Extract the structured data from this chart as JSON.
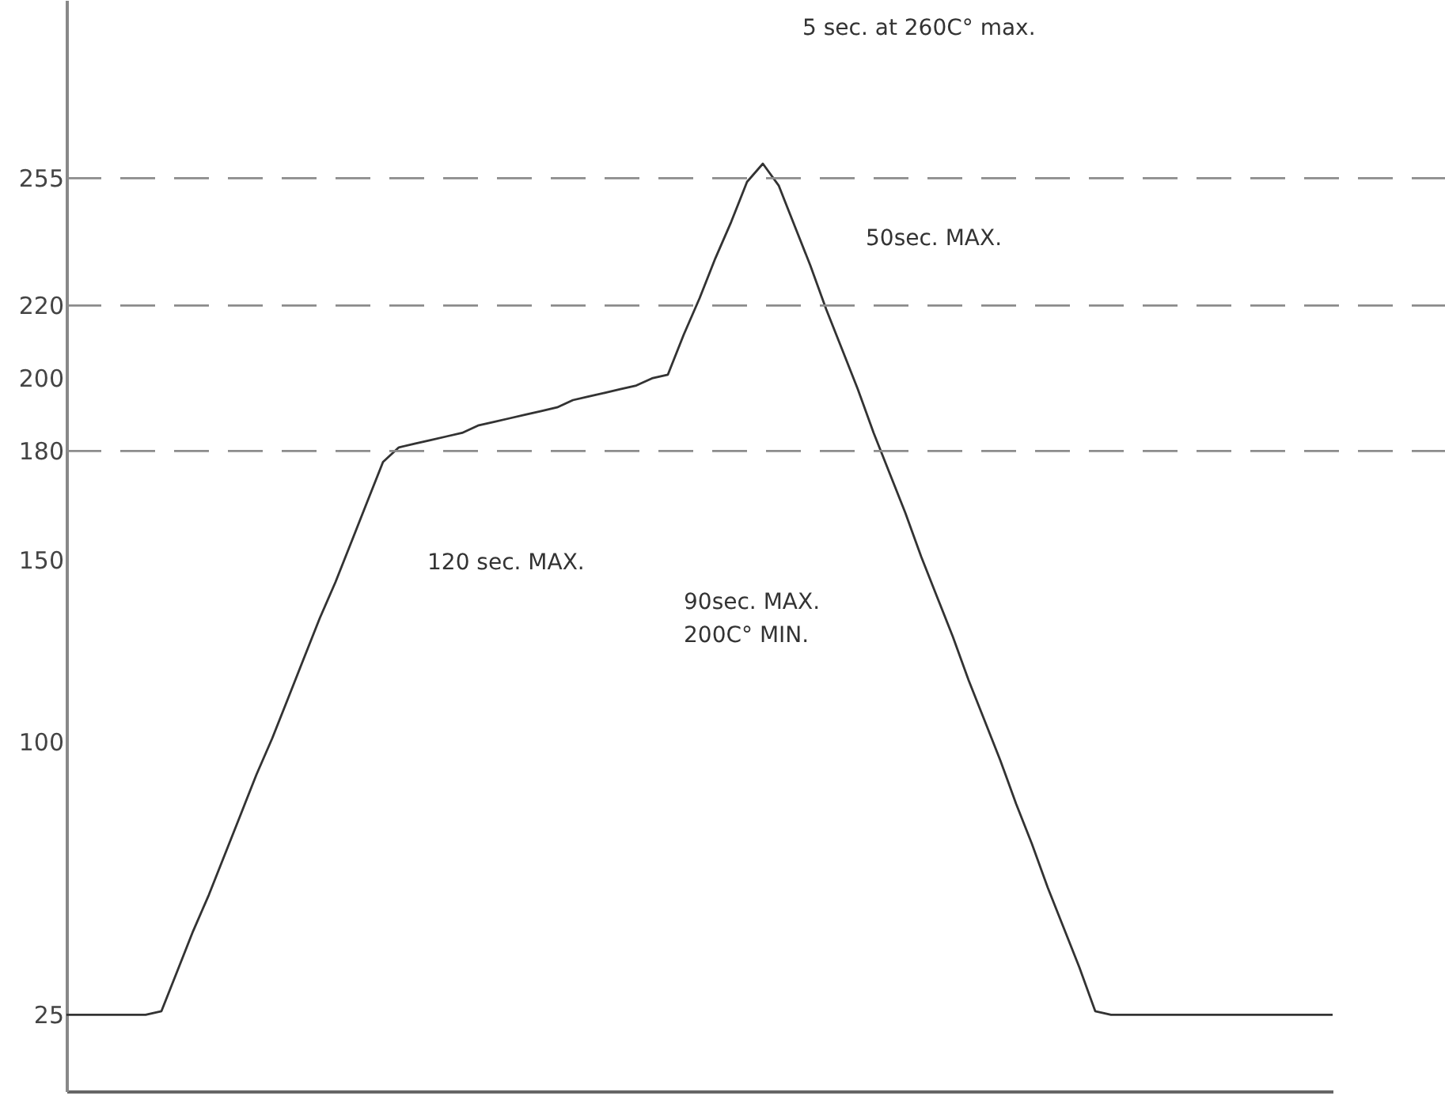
{
  "chart_data": {
    "type": "line",
    "categories": [
      null,
      null,
      null,
      null,
      null,
      null,
      null,
      null,
      null,
      null,
      null,
      null,
      null,
      null,
      null,
      null,
      null,
      null,
      null,
      null,
      null,
      null,
      null,
      null,
      null,
      null,
      null,
      null,
      null,
      null,
      null,
      null,
      null,
      null,
      null,
      null,
      null,
      null,
      null,
      null,
      null,
      null,
      null,
      null,
      null,
      null,
      null,
      null,
      null,
      null,
      null,
      null,
      null,
      null,
      null,
      null,
      null,
      null,
      null,
      null,
      null,
      null,
      null,
      null,
      null,
      null,
      null,
      null,
      null,
      null,
      null,
      null,
      null,
      null,
      null,
      null,
      null,
      null,
      null,
      null,
      null
    ],
    "series": [
      {
        "color": "#333333",
        "values": [
          25,
          25,
          25,
          25,
          25,
          25,
          26,
          37,
          48,
          58,
          69,
          80,
          91,
          101,
          112,
          123,
          134,
          144,
          155,
          166,
          177,
          181,
          182,
          183,
          184,
          185,
          187,
          188,
          189,
          190,
          191,
          192,
          194,
          195,
          196,
          197,
          198,
          200,
          201,
          212,
          222,
          233,
          243,
          254,
          259,
          253,
          242,
          231,
          219,
          208,
          197,
          185,
          174,
          163,
          151,
          140,
          129,
          117,
          106,
          95,
          83,
          72,
          60,
          49,
          38,
          26,
          25,
          25,
          25,
          25,
          25,
          25,
          25,
          25,
          25,
          25,
          25,
          25,
          25,
          25,
          25
        ]
      }
    ],
    "ylim": [
      4,
      304
    ],
    "yticks": [
      25,
      100,
      150,
      180,
      200,
      220,
      255
    ],
    "tick_labels": "y",
    "grid": false,
    "marker": "none",
    "line_style": "solid",
    "ref_lines": [
      {
        "axis": "y",
        "value": 180,
        "line_style": "dashed",
        "color": "#8c8c8c"
      },
      {
        "axis": "y",
        "value": 220,
        "line_style": "dashed",
        "color": "#8c8c8c"
      },
      {
        "axis": "y",
        "value": 255,
        "line_style": "dashed",
        "color": "#8c8c8c"
      }
    ],
    "annotations": [
      "5 sec. at 260C° max.",
      "50sec. MAX.",
      "120 sec. MAX.",
      "90sec. MAX.",
      "200C° MIN."
    ]
  }
}
